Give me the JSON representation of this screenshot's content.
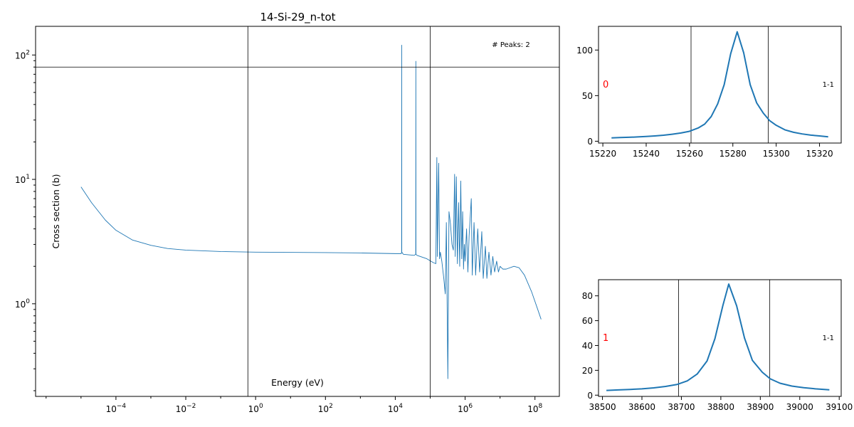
{
  "chart_data": [
    {
      "type": "line",
      "title": "14-Si-29_n-tot",
      "xlabel": "Energy (eV)",
      "ylabel": "Cross section (b)",
      "xscale": "log",
      "yscale": "log",
      "xlim": [
        5e-07,
        500000000.0
      ],
      "ylim": [
        0.18,
        170
      ],
      "x_ticks": [
        0.0001,
        0.01,
        1,
        100,
        10000,
        1000000,
        100000000
      ],
      "x_tick_labels": [
        {
          "base": "10",
          "exp": "−4"
        },
        {
          "base": "10",
          "exp": "−2"
        },
        {
          "base": "10",
          "exp": "0"
        },
        {
          "base": "10",
          "exp": "2"
        },
        {
          "base": "10",
          "exp": "4"
        },
        {
          "base": "10",
          "exp": "6"
        },
        {
          "base": "10",
          "exp": "8"
        }
      ],
      "y_ticks": [
        1,
        10,
        100
      ],
      "y_tick_labels": [
        {
          "base": "10",
          "exp": "0"
        },
        {
          "base": "10",
          "exp": "1"
        },
        {
          "base": "10",
          "exp": "2"
        }
      ],
      "annotation": "# Peaks: 2",
      "vlines": [
        0.6,
        100000
      ],
      "hline": 80,
      "line_color": "#1f77b4",
      "points": [
        [
          1e-05,
          8.7
        ],
        [
          2e-05,
          6.5
        ],
        [
          5e-05,
          4.7
        ],
        [
          0.0001,
          3.9
        ],
        [
          0.0003,
          3.25
        ],
        [
          0.001,
          2.95
        ],
        [
          0.003,
          2.78
        ],
        [
          0.01,
          2.7
        ],
        [
          0.1,
          2.63
        ],
        [
          1,
          2.6
        ],
        [
          100,
          2.58
        ],
        [
          1000,
          2.56
        ],
        [
          10000,
          2.53
        ],
        [
          14800,
          2.53
        ],
        [
          15200,
          2.6
        ],
        [
          15282,
          120
        ],
        [
          15350,
          2.6
        ],
        [
          17000,
          2.5
        ],
        [
          35000,
          2.45
        ],
        [
          38500,
          2.5
        ],
        [
          38820,
          89
        ],
        [
          39100,
          2.5
        ],
        [
          42000,
          2.45
        ],
        [
          80000,
          2.3
        ],
        [
          120000,
          2.15
        ],
        [
          145000,
          2.1
        ],
        [
          155000,
          15
        ],
        [
          160000,
          2.4
        ],
        [
          175000,
          13.5
        ],
        [
          185000,
          2.3
        ],
        [
          195000,
          2.6
        ],
        [
          215000,
          2.2
        ],
        [
          245000,
          1.6
        ],
        [
          270000,
          1.2
        ],
        [
          290000,
          4.5
        ],
        [
          320000,
          0.25
        ],
        [
          345000,
          5.5
        ],
        [
          380000,
          4.4
        ],
        [
          420000,
          3.0
        ],
        [
          460000,
          2.7
        ],
        [
          500000,
          11.0
        ],
        [
          520000,
          2.4
        ],
        [
          560000,
          10.5
        ],
        [
          600000,
          2.1
        ],
        [
          650000,
          6.5
        ],
        [
          700000,
          2.0
        ],
        [
          750000,
          9.7
        ],
        [
          800000,
          2.3
        ],
        [
          850000,
          5.5
        ],
        [
          900000,
          1.9
        ],
        [
          950000,
          3.0
        ],
        [
          1000000,
          2.2
        ],
        [
          1100000,
          4.0
        ],
        [
          1200000,
          1.8
        ],
        [
          1300000,
          3.5
        ],
        [
          1500000,
          7.0
        ],
        [
          1600000,
          1.7
        ],
        [
          1800000,
          4.5
        ],
        [
          2000000,
          1.7
        ],
        [
          2300000,
          4.0
        ],
        [
          2600000,
          1.8
        ],
        [
          3000000,
          3.8
        ],
        [
          3300000,
          1.6
        ],
        [
          3800000,
          2.9
        ],
        [
          4200000,
          1.6
        ],
        [
          4800000,
          2.6
        ],
        [
          5500000,
          1.7
        ],
        [
          6200000,
          2.4
        ],
        [
          7000000,
          1.8
        ],
        [
          8000000,
          2.2
        ],
        [
          9000000,
          1.8
        ],
        [
          10000000,
          2.0
        ],
        [
          12000000,
          1.9
        ],
        [
          15000000,
          1.9
        ],
        [
          25000000,
          2.0
        ],
        [
          35000000,
          1.95
        ],
        [
          50000000,
          1.7
        ],
        [
          80000000,
          1.25
        ],
        [
          120000000,
          0.9
        ],
        [
          150000000,
          0.75
        ]
      ]
    },
    {
      "type": "line",
      "panel_label": "0",
      "side_label": "1-1",
      "xlim": [
        15218,
        15330
      ],
      "ylim": [
        -2,
        126
      ],
      "x_ticks": [
        15220,
        15240,
        15260,
        15280,
        15300,
        15320
      ],
      "y_ticks": [
        0,
        50,
        100
      ],
      "vlines": [
        15260.7,
        15296.3
      ],
      "line_color": "#1f77b4",
      "x": [
        15224,
        15228,
        15232,
        15236,
        15240,
        15244,
        15248,
        15252,
        15256,
        15260,
        15264,
        15267,
        15270,
        15273,
        15276,
        15279,
        15282,
        15285,
        15288,
        15291,
        15294,
        15297,
        15300,
        15304,
        15308,
        15312,
        15316,
        15320,
        15324
      ],
      "y": [
        3.7,
        4.0,
        4.3,
        4.7,
        5.2,
        5.8,
        6.6,
        7.7,
        9.0,
        10.9,
        14.5,
        18.8,
        27,
        41,
        62,
        96,
        120,
        97,
        62,
        42,
        31,
        22.5,
        17.5,
        12.5,
        9.8,
        8.0,
        6.7,
        5.8,
        4.8
      ]
    },
    {
      "type": "line",
      "panel_label": "1",
      "side_label": "1-1",
      "xlim": [
        38490,
        39105
      ],
      "ylim": [
        -1,
        93
      ],
      "x_ticks": [
        38500,
        38600,
        38700,
        38800,
        38900,
        39000,
        39100
      ],
      "y_ticks": [
        0,
        20,
        40,
        60,
        80
      ],
      "vlines": [
        38693,
        38924
      ],
      "line_color": "#1f77b4",
      "x": [
        38510,
        38540,
        38570,
        38600,
        38630,
        38660,
        38690,
        38715,
        38740,
        38765,
        38785,
        38805,
        38820,
        38840,
        38860,
        38880,
        38905,
        38925,
        38950,
        38980,
        39010,
        39040,
        39075
      ],
      "y": [
        3.8,
        4.2,
        4.6,
        5.1,
        5.9,
        7.0,
        8.7,
        11.5,
        17.0,
        27.5,
        45.5,
        72,
        89.5,
        72,
        46,
        28,
        18.5,
        13.2,
        9.6,
        7.3,
        6.0,
        5.1,
        4.3
      ]
    }
  ]
}
